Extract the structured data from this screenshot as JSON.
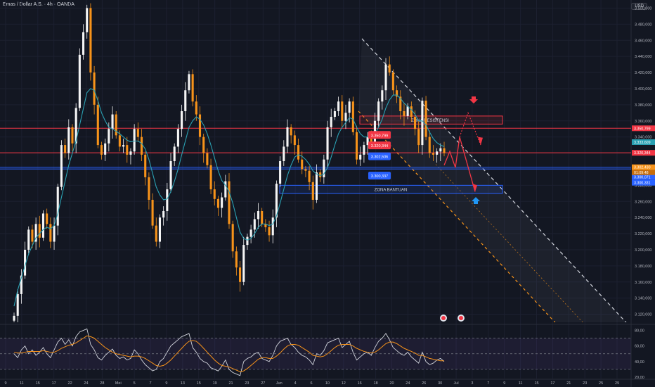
{
  "header": {
    "title": "Emas / Dollar A.S. · 4h · OANDA",
    "currency": "USD"
  },
  "price_axis": {
    "ticks": [
      "3.500,000",
      "3.480,000",
      "3.460,000",
      "3.440,000",
      "3.420,000",
      "3.400,000",
      "3.380,000",
      "3.360,000",
      "3.340,000",
      "3.320,000",
      "3.300,000",
      "3.280,000",
      "3.260,000",
      "3.240,000",
      "3.220,000",
      "3.200,000",
      "3.180,000",
      "3.160,000",
      "3.140,000",
      "3.120,000"
    ]
  },
  "time_axis": {
    "ticks": [
      "9",
      "11",
      "15",
      "17",
      "22",
      "24",
      "28",
      "Mei",
      "5",
      "7",
      "9",
      "13",
      "15",
      "19",
      "21",
      "23",
      "27",
      "Jun",
      "4",
      "6",
      "10",
      "12",
      "16",
      "18",
      "20",
      "24",
      "26",
      "30",
      "Jul",
      "3",
      "7",
      "9",
      "11",
      "15",
      "17",
      "21",
      "23",
      "25",
      "29"
    ]
  },
  "rsi_axis": {
    "ticks": [
      "80,00",
      "60,00",
      "40,00",
      "20,00"
    ]
  },
  "zones": {
    "resistance": "ZONA RESISTENSI",
    "support": "ZONA BANTUAN"
  },
  "price_labels": {
    "left": [
      "3.350,799",
      "3.320,344",
      "3.302,506",
      "3.300,337"
    ],
    "right": [
      "3.350,799",
      "3.333,609",
      "3.320,344",
      "3.302,430",
      "3.300,071",
      "3.300,331"
    ],
    "current_time": "01:09:48"
  },
  "colors": {
    "accent_red": "#f23645",
    "accent_blue": "#2962ff",
    "teal": "#2aa1b3",
    "orange": "#f7931a",
    "rsi": "#d1d4dc"
  },
  "chart_data": {
    "type": "candlestick",
    "title": "Emas / Dollar A.S. · 4h · OANDA",
    "ylim": [
      3110,
      3510
    ],
    "x_range": [
      "Apr 9",
      "Jul 29"
    ],
    "close": [
      3118,
      3145,
      3168,
      3200,
      3225,
      3210,
      3232,
      3215,
      3245,
      3232,
      3210,
      3230,
      3278,
      3330,
      3320,
      3352,
      3332,
      3376,
      3442,
      3470,
      3500,
      3420,
      3380,
      3330,
      3318,
      3332,
      3350,
      3368,
      3342,
      3328,
      3330,
      3318,
      3322,
      3350,
      3340,
      3318,
      3290,
      3262,
      3230,
      3210,
      3240,
      3248,
      3275,
      3310,
      3328,
      3350,
      3372,
      3398,
      3418,
      3384,
      3368,
      3340,
      3320,
      3305,
      3275,
      3263,
      3252,
      3265,
      3285,
      3232,
      3198,
      3178,
      3160,
      3206,
      3216,
      3225,
      3238,
      3248,
      3232,
      3228,
      3218,
      3240,
      3282,
      3310,
      3328,
      3352,
      3342,
      3330,
      3312,
      3300,
      3298,
      3284,
      3262,
      3296,
      3290,
      3312,
      3352,
      3365,
      3372,
      3384,
      3360,
      3370,
      3384,
      3346,
      3312,
      3318,
      3330,
      3340,
      3333,
      3360,
      3384,
      3398,
      3430,
      3420,
      3398,
      3390,
      3372,
      3366,
      3378,
      3365,
      3350,
      3330,
      3385,
      3340,
      3320,
      3318,
      3322,
      3326,
      3320
    ],
    "ma": [
      3130,
      3150,
      3165,
      3180,
      3195,
      3205,
      3215,
      3220,
      3225,
      3228,
      3226,
      3230,
      3245,
      3265,
      3285,
      3305,
      3320,
      3335,
      3355,
      3375,
      3395,
      3400,
      3398,
      3385,
      3370,
      3360,
      3352,
      3350,
      3347,
      3344,
      3340,
      3336,
      3334,
      3335,
      3335,
      3332,
      3325,
      3312,
      3295,
      3278,
      3268,
      3262,
      3263,
      3272,
      3285,
      3300,
      3318,
      3335,
      3352,
      3360,
      3365,
      3362,
      3355,
      3344,
      3330,
      3314,
      3298,
      3286,
      3280,
      3272,
      3258,
      3240,
      3222,
      3214,
      3212,
      3214,
      3220,
      3228,
      3232,
      3232,
      3230,
      3232,
      3242,
      3258,
      3275,
      3292,
      3305,
      3315,
      3318,
      3316,
      3312,
      3306,
      3298,
      3294,
      3292,
      3294,
      3302,
      3315,
      3330,
      3344,
      3352,
      3358,
      3364,
      3362,
      3352,
      3344,
      3340,
      3340,
      3340,
      3344,
      3352,
      3362,
      3376,
      3386,
      3392,
      3392,
      3388,
      3382,
      3378,
      3374,
      3368,
      3360,
      3360,
      3355,
      3346,
      3338,
      3333,
      3330,
      3328
    ],
    "levels": [
      3350.799,
      3320.344,
      3302.506,
      3300.337
    ],
    "resistance_zone": [
      3366,
      3356
    ],
    "support_zone": [
      3280,
      3270
    ],
    "rsi": {
      "ylim": [
        20,
        85
      ],
      "levels": [
        70,
        50,
        30
      ],
      "values": [
        50,
        45,
        55,
        60,
        50,
        55,
        48,
        52,
        58,
        50,
        45,
        55,
        65,
        70,
        62,
        68,
        60,
        72,
        78,
        80,
        82,
        62,
        55,
        45,
        42,
        48,
        52,
        56,
        48,
        44,
        46,
        42,
        44,
        55,
        50,
        42,
        36,
        32,
        28,
        30,
        40,
        44,
        52,
        60,
        64,
        68,
        72,
        74,
        76,
        58,
        52,
        44,
        40,
        38,
        32,
        30,
        28,
        34,
        42,
        30,
        26,
        24,
        22,
        40,
        44,
        46,
        50,
        52,
        44,
        42,
        40,
        48,
        60,
        66,
        68,
        70,
        62,
        58,
        52,
        48,
        46,
        42,
        36,
        50,
        48,
        54,
        64,
        66,
        68,
        70,
        58,
        62,
        66,
        52,
        42,
        46,
        50,
        52,
        48,
        58,
        66,
        70,
        76,
        68,
        58,
        54,
        50,
        48,
        52,
        46,
        42,
        38,
        52,
        40,
        36,
        38,
        42,
        44,
        40
      ],
      "ma": [
        52,
        51,
        51,
        52,
        53,
        53,
        53,
        53,
        54,
        53,
        52,
        52,
        54,
        57,
        59,
        61,
        62,
        64,
        67,
        70,
        73,
        72,
        70,
        66,
        62,
        58,
        55,
        52,
        50,
        49,
        48,
        47,
        46,
        47,
        47,
        46,
        44,
        41,
        38,
        35,
        34,
        35,
        38,
        42,
        47,
        52,
        57,
        62,
        66,
        67,
        66,
        62,
        57,
        52,
        47,
        42,
        38,
        35,
        34,
        33,
        31,
        29,
        27,
        28,
        31,
        35,
        39,
        43,
        45,
        45,
        44,
        44,
        47,
        51,
        56,
        60,
        62,
        62,
        61,
        58,
        55,
        52,
        48,
        47,
        46,
        47,
        50,
        54,
        58,
        61,
        62,
        62,
        62,
        60,
        57,
        55,
        53,
        52,
        51,
        52,
        55,
        59,
        63,
        65,
        65,
        63,
        60,
        57,
        55,
        53,
        51,
        48,
        48,
        46,
        44,
        43,
        42,
        41,
        41
      ]
    }
  }
}
